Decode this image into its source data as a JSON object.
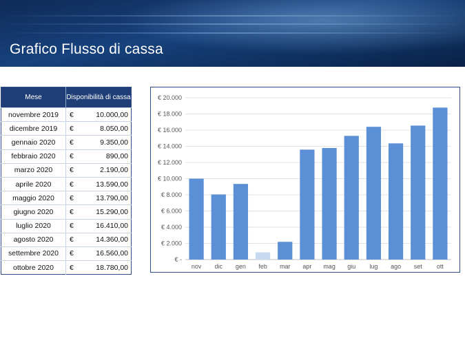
{
  "header": {
    "title": "Grafico Flusso di cassa"
  },
  "table": {
    "headers": [
      "Mese",
      "Disponibilità di cassa"
    ],
    "currency_symbol": "€",
    "rows": [
      {
        "month": "novembre 2019",
        "amount": "10.000,00"
      },
      {
        "month": "dicembre 2019",
        "amount": "8.050,00"
      },
      {
        "month": "gennaio 2020",
        "amount": "9.350,00"
      },
      {
        "month": "febbraio 2020",
        "amount": "890,00"
      },
      {
        "month": "marzo 2020",
        "amount": "2.190,00"
      },
      {
        "month": "aprile 2020",
        "amount": "13.590,00"
      },
      {
        "month": "maggio 2020",
        "amount": "13.790,00"
      },
      {
        "month": "giugno 2020",
        "amount": "15.290,00"
      },
      {
        "month": "luglio 2020",
        "amount": "16.410,00"
      },
      {
        "month": "agosto 2020",
        "amount": "14.360,00"
      },
      {
        "month": "settembre 2020",
        "amount": "16.560,00"
      },
      {
        "month": "ottobre 2020",
        "amount": "18.780,00"
      }
    ]
  },
  "chart_data": {
    "type": "bar",
    "categories": [
      "nov",
      "dic",
      "gen",
      "feb",
      "mar",
      "apr",
      "mag",
      "giu",
      "lug",
      "ago",
      "set",
      "ott"
    ],
    "values": [
      10000,
      8050,
      9350,
      890,
      2190,
      13590,
      13790,
      15290,
      16410,
      14360,
      16560,
      18780
    ],
    "ylim": [
      0,
      20000
    ],
    "ytick_values": [
      0,
      2000,
      4000,
      6000,
      8000,
      10000,
      12000,
      14000,
      16000,
      18000,
      20000
    ],
    "ytick_labels": [
      "€ -",
      "€ 2.000",
      "€ 4.000",
      "€ 6.000",
      "€ 8.000",
      "€ 10.000",
      "€ 12.000",
      "€ 14.000",
      "€ 16.000",
      "€ 18.000",
      "€ 20.000"
    ],
    "grid": true,
    "bar_color": "#5b8fd6",
    "highlight_color": "#c6d9f1",
    "highlight_index": 3
  }
}
